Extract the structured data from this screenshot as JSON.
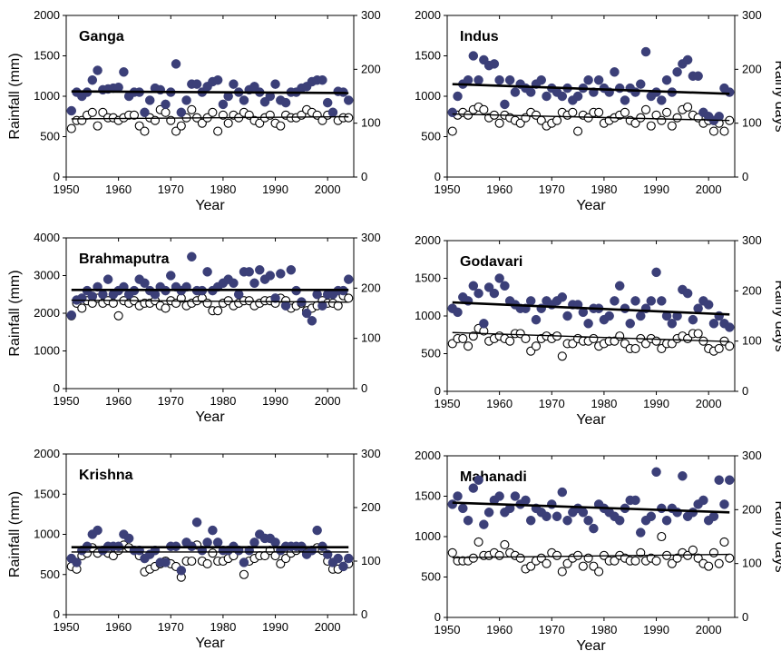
{
  "figure": {
    "x_axis_label": "Year",
    "y_axis_left_label": "Rainfall (mm)",
    "y_axis_right_label": "Rainy days"
  },
  "colors": {
    "rainfall_marker": "#3b3f78",
    "rainy_days_marker": "#ffffff",
    "trend_line": "#000000"
  },
  "chart_data": [
    {
      "type": "scatter",
      "title": "Ganga",
      "xlabel": "Year",
      "ylabel": "Rainfall (mm)",
      "y2label": "",
      "xlim": [
        1950,
        2005
      ],
      "ylim": [
        0,
        2000
      ],
      "y2lim": [
        0,
        300
      ],
      "xticks": [
        1950,
        1960,
        1970,
        1980,
        1990,
        2000
      ],
      "yticks": [
        0,
        500,
        1000,
        1500,
        2000
      ],
      "y2ticks": [
        0,
        100,
        200,
        300
      ],
      "x": [
        1951,
        1952,
        1953,
        1954,
        1955,
        1956,
        1957,
        1958,
        1959,
        1960,
        1961,
        1962,
        1963,
        1964,
        1965,
        1966,
        1967,
        1968,
        1969,
        1970,
        1971,
        1972,
        1973,
        1974,
        1975,
        1976,
        1977,
        1978,
        1979,
        1980,
        1981,
        1982,
        1983,
        1984,
        1985,
        1986,
        1987,
        1988,
        1989,
        1990,
        1991,
        1992,
        1993,
        1994,
        1995,
        1996,
        1997,
        1998,
        1999,
        2000,
        2001,
        2002,
        2003,
        2004
      ],
      "rainfall": [
        820,
        1050,
        1000,
        1050,
        1200,
        1320,
        1080,
        1090,
        1100,
        1110,
        1300,
        1000,
        1050,
        1050,
        800,
        950,
        1100,
        1080,
        900,
        1050,
        1400,
        800,
        950,
        1150,
        1150,
        1050,
        1120,
        1180,
        1200,
        900,
        1000,
        1150,
        1050,
        950,
        1080,
        1120,
        1050,
        930,
        1000,
        1150,
        950,
        920,
        1050,
        1050,
        1100,
        1120,
        1180,
        1200,
        1200,
        920,
        800,
        1060,
        1050,
        950
      ],
      "rainy_days": [
        90,
        105,
        105,
        115,
        120,
        95,
        120,
        110,
        110,
        105,
        110,
        115,
        115,
        95,
        85,
        110,
        105,
        125,
        120,
        105,
        85,
        95,
        110,
        125,
        110,
        100,
        110,
        120,
        85,
        115,
        100,
        115,
        110,
        120,
        115,
        105,
        100,
        110,
        115,
        100,
        95,
        115,
        110,
        110,
        115,
        125,
        120,
        115,
        105,
        115,
        120,
        105,
        110,
        110
      ],
      "trend_rainfall": [
        [
          1951,
          1060
        ],
        [
          2004,
          1040
        ]
      ],
      "trend_rainy_days": [
        [
          1951,
          108
        ],
        [
          2004,
          112
        ]
      ]
    },
    {
      "type": "scatter",
      "title": "Indus",
      "xlabel": "Year",
      "ylabel": "",
      "y2label": "Rainy days",
      "xlim": [
        1950,
        2005
      ],
      "ylim": [
        0,
        2000
      ],
      "y2lim": [
        0,
        300
      ],
      "xticks": [
        1950,
        1960,
        1970,
        1980,
        1990,
        2000
      ],
      "yticks": [
        0,
        500,
        1000,
        1500,
        2000
      ],
      "y2ticks": [
        0,
        100,
        200,
        300
      ],
      "x": [
        1951,
        1952,
        1953,
        1954,
        1955,
        1956,
        1957,
        1958,
        1959,
        1960,
        1961,
        1962,
        1963,
        1964,
        1965,
        1966,
        1967,
        1968,
        1969,
        1970,
        1971,
        1972,
        1973,
        1974,
        1975,
        1976,
        1977,
        1978,
        1979,
        1980,
        1981,
        1982,
        1983,
        1984,
        1985,
        1986,
        1987,
        1988,
        1989,
        1990,
        1991,
        1992,
        1993,
        1994,
        1995,
        1996,
        1997,
        1998,
        1999,
        2000,
        2001,
        2002,
        2003,
        2004
      ],
      "rainfall": [
        800,
        1000,
        1150,
        1200,
        1500,
        1200,
        1450,
        1380,
        1400,
        1200,
        900,
        1200,
        1050,
        1150,
        1100,
        1050,
        1150,
        1200,
        1000,
        1100,
        1050,
        1000,
        1100,
        950,
        1000,
        1100,
        1200,
        1050,
        1200,
        1100,
        1050,
        1300,
        1100,
        950,
        1100,
        1050,
        1150,
        1550,
        1000,
        1050,
        950,
        1200,
        1050,
        1300,
        1400,
        1450,
        1250,
        1250,
        800,
        750,
        700,
        750,
        1100,
        1050
      ],
      "rainy_days": [
        85,
        115,
        120,
        115,
        125,
        130,
        125,
        110,
        115,
        100,
        115,
        110,
        105,
        100,
        110,
        120,
        115,
        105,
        95,
        100,
        105,
        120,
        115,
        120,
        85,
        115,
        110,
        120,
        120,
        100,
        105,
        110,
        115,
        120,
        105,
        100,
        110,
        125,
        95,
        115,
        105,
        120,
        95,
        110,
        125,
        130,
        115,
        110,
        100,
        105,
        85,
        100,
        85,
        105
      ],
      "trend_rainfall": [
        [
          1951,
          1150
        ],
        [
          2004,
          1030
        ]
      ],
      "trend_rainy_days": [
        [
          1951,
          117
        ],
        [
          2004,
          105
        ]
      ]
    },
    {
      "type": "scatter",
      "title": "Brahmaputra",
      "xlabel": "Year",
      "ylabel": "Rainfall (mm)",
      "y2label": "",
      "xlim": [
        1950,
        2005
      ],
      "ylim": [
        0,
        4000
      ],
      "y2lim": [
        0,
        300
      ],
      "xticks": [
        1950,
        1960,
        1970,
        1980,
        1990,
        2000
      ],
      "yticks": [
        0,
        1000,
        2000,
        3000,
        4000
      ],
      "y2ticks": [
        0,
        100,
        200,
        300
      ],
      "x": [
        1951,
        1952,
        1953,
        1954,
        1955,
        1956,
        1957,
        1958,
        1959,
        1960,
        1961,
        1962,
        1963,
        1964,
        1965,
        1966,
        1967,
        1968,
        1969,
        1970,
        1971,
        1972,
        1973,
        1974,
        1975,
        1976,
        1977,
        1978,
        1979,
        1980,
        1981,
        1982,
        1983,
        1984,
        1985,
        1986,
        1987,
        1988,
        1989,
        1990,
        1991,
        1992,
        1993,
        1994,
        1995,
        1996,
        1997,
        1998,
        1999,
        2000,
        2001,
        2002,
        2003,
        2004
      ],
      "rainfall": [
        1950,
        2350,
        2400,
        2600,
        2450,
        2700,
        2500,
        2900,
        2500,
        2600,
        2700,
        2500,
        2600,
        2900,
        2800,
        2600,
        2500,
        2700,
        2600,
        3000,
        2700,
        2600,
        2700,
        3500,
        2600,
        2600,
        3100,
        2600,
        2700,
        2800,
        2900,
        2800,
        2500,
        3100,
        3100,
        2800,
        3150,
        2900,
        3000,
        2400,
        3050,
        2200,
        3150,
        2600,
        2300,
        2000,
        1800,
        2500,
        2200,
        2500,
        2500,
        2600,
        2600,
        2900
      ],
      "rainy_days": [
        145,
        170,
        160,
        175,
        170,
        180,
        170,
        175,
        170,
        145,
        175,
        170,
        175,
        165,
        170,
        170,
        175,
        165,
        160,
        175,
        170,
        180,
        165,
        170,
        175,
        180,
        170,
        155,
        155,
        170,
        175,
        165,
        170,
        175,
        175,
        165,
        170,
        175,
        175,
        170,
        180,
        175,
        160,
        165,
        170,
        155,
        160,
        165,
        175,
        170,
        170,
        165,
        185,
        180
      ],
      "trend_rainfall": [
        [
          1951,
          2620
        ],
        [
          2004,
          2620
        ]
      ],
      "trend_rainy_days": [
        [
          1951,
          176
        ],
        [
          2004,
          172
        ]
      ]
    },
    {
      "type": "scatter",
      "title": "Godavari",
      "xlabel": "Year",
      "ylabel": "",
      "y2label": "Rainy days",
      "xlim": [
        1950,
        2005
      ],
      "ylim": [
        0,
        2000
      ],
      "y2lim": [
        0,
        300
      ],
      "xticks": [
        1950,
        1960,
        1970,
        1980,
        1990,
        2000
      ],
      "yticks": [
        0,
        500,
        1000,
        1500,
        2000
      ],
      "y2ticks": [
        0,
        100,
        200,
        300
      ],
      "x": [
        1951,
        1952,
        1953,
        1954,
        1955,
        1956,
        1957,
        1958,
        1959,
        1960,
        1961,
        1962,
        1963,
        1964,
        1965,
        1966,
        1967,
        1968,
        1969,
        1970,
        1971,
        1972,
        1973,
        1974,
        1975,
        1976,
        1977,
        1978,
        1979,
        1980,
        1981,
        1982,
        1983,
        1984,
        1985,
        1986,
        1987,
        1988,
        1989,
        1990,
        1991,
        1992,
        1993,
        1994,
        1995,
        1996,
        1997,
        1998,
        1999,
        2000,
        2001,
        2002,
        2003,
        2004
      ],
      "rainfall": [
        1100,
        1050,
        1250,
        1200,
        1400,
        1300,
        900,
        1380,
        1300,
        1500,
        1400,
        1200,
        1150,
        1100,
        1100,
        1200,
        950,
        1100,
        1200,
        1150,
        1200,
        1250,
        1000,
        1150,
        1150,
        1050,
        900,
        1100,
        1100,
        950,
        1000,
        1200,
        1400,
        1100,
        900,
        1200,
        1000,
        1100,
        1200,
        1580,
        1200,
        1000,
        900,
        1000,
        1350,
        1300,
        950,
        1100,
        1200,
        1150,
        900,
        1000,
        900,
        850
      ],
      "rainy_days": [
        95,
        105,
        105,
        90,
        110,
        125,
        120,
        100,
        105,
        110,
        105,
        100,
        115,
        115,
        105,
        80,
        90,
        105,
        110,
        105,
        110,
        70,
        95,
        95,
        105,
        100,
        100,
        105,
        90,
        95,
        100,
        100,
        110,
        95,
        85,
        85,
        105,
        95,
        105,
        100,
        85,
        95,
        95,
        105,
        110,
        105,
        115,
        115,
        100,
        85,
        80,
        85,
        100,
        90
      ],
      "trend_rainfall": [
        [
          1951,
          1180
        ],
        [
          2004,
          1020
        ]
      ],
      "trend_rainy_days": [
        [
          1951,
          117
        ],
        [
          2004,
          99
        ]
      ]
    },
    {
      "type": "scatter",
      "title": "Krishna",
      "xlabel": "Year",
      "ylabel": "Rainfall (mm)",
      "y2label": "",
      "xlim": [
        1950,
        2005
      ],
      "ylim": [
        0,
        2000
      ],
      "y2lim": [
        0,
        300
      ],
      "xticks": [
        1950,
        1960,
        1970,
        1980,
        1990,
        2000
      ],
      "yticks": [
        0,
        500,
        1000,
        1500,
        2000
      ],
      "y2ticks": [
        0,
        100,
        200,
        300
      ],
      "x": [
        1951,
        1952,
        1953,
        1954,
        1955,
        1956,
        1957,
        1958,
        1959,
        1960,
        1961,
        1962,
        1963,
        1964,
        1965,
        1966,
        1967,
        1968,
        1969,
        1970,
        1971,
        1972,
        1973,
        1974,
        1975,
        1976,
        1977,
        1978,
        1979,
        1980,
        1981,
        1982,
        1983,
        1984,
        1985,
        1986,
        1987,
        1988,
        1989,
        1990,
        1991,
        1992,
        1993,
        1994,
        1995,
        1996,
        1997,
        1998,
        1999,
        2000,
        2001,
        2002,
        2003,
        2004
      ],
      "rainfall": [
        700,
        650,
        800,
        850,
        1000,
        1050,
        800,
        850,
        850,
        850,
        1000,
        950,
        800,
        800,
        700,
        750,
        800,
        650,
        650,
        850,
        850,
        550,
        900,
        850,
        1150,
        800,
        900,
        1050,
        900,
        800,
        800,
        850,
        800,
        650,
        800,
        900,
        1000,
        950,
        950,
        900,
        800,
        850,
        850,
        850,
        850,
        750,
        800,
        1050,
        850,
        750,
        650,
        700,
        600,
        700
      ],
      "rainy_days": [
        90,
        85,
        110,
        115,
        125,
        115,
        120,
        115,
        110,
        120,
        130,
        125,
        120,
        110,
        80,
        85,
        90,
        95,
        100,
        95,
        90,
        70,
        100,
        100,
        130,
        100,
        95,
        115,
        100,
        100,
        105,
        110,
        120,
        75,
        100,
        105,
        110,
        110,
        120,
        110,
        95,
        105,
        115,
        120,
        125,
        115,
        120,
        125,
        120,
        100,
        85,
        85,
        90,
        95
      ],
      "trend_rainfall": [
        [
          1951,
          840
        ],
        [
          2004,
          840
        ]
      ],
      "trend_rainy_days": [
        [
          1951,
          117
        ],
        [
          2004,
          117
        ]
      ]
    },
    {
      "type": "scatter",
      "title": "Mahanadi",
      "xlabel": "Year",
      "ylabel": "",
      "y2label": "Rainy days",
      "xlim": [
        1950,
        2005
      ],
      "ylim": [
        0,
        2000
      ],
      "y2lim": [
        0,
        300
      ],
      "xticks": [
        1950,
        1960,
        1970,
        1980,
        1990,
        2000
      ],
      "yticks": [
        0,
        500,
        1000,
        1500,
        2000
      ],
      "y2ticks": [
        0,
        100,
        200,
        300
      ],
      "x": [
        1951,
        1952,
        1953,
        1954,
        1955,
        1956,
        1957,
        1958,
        1959,
        1960,
        1961,
        1962,
        1963,
        1964,
        1965,
        1966,
        1967,
        1968,
        1969,
        1970,
        1971,
        1972,
        1973,
        1974,
        1975,
        1976,
        1977,
        1978,
        1979,
        1980,
        1981,
        1982,
        1983,
        1984,
        1985,
        1986,
        1987,
        1988,
        1989,
        1990,
        1991,
        1992,
        1993,
        1994,
        1995,
        1996,
        1997,
        1998,
        1999,
        2000,
        2001,
        2002,
        2003,
        2004
      ],
      "rainfall": [
        1400,
        1500,
        1350,
        1200,
        1600,
        1700,
        1150,
        1300,
        1450,
        1500,
        1300,
        1350,
        1500,
        1400,
        1450,
        1200,
        1350,
        1300,
        1250,
        1400,
        1250,
        1550,
        1200,
        1300,
        1350,
        1300,
        1200,
        1100,
        1400,
        1350,
        1300,
        1250,
        1200,
        1350,
        1450,
        1450,
        1050,
        1200,
        1250,
        1800,
        1350,
        1200,
        1350,
        1300,
        1750,
        1250,
        1300,
        1400,
        1450,
        1200,
        1250,
        1700,
        1400,
        1700
      ],
      "rainy_days": [
        120,
        105,
        105,
        105,
        110,
        140,
        115,
        115,
        120,
        115,
        135,
        120,
        115,
        110,
        90,
        95,
        105,
        110,
        100,
        120,
        115,
        85,
        100,
        110,
        115,
        95,
        110,
        95,
        85,
        115,
        105,
        105,
        115,
        110,
        105,
        105,
        120,
        105,
        110,
        105,
        150,
        115,
        100,
        110,
        120,
        115,
        125,
        110,
        100,
        95,
        120,
        100,
        140,
        110
      ],
      "trend_rainfall": [
        [
          1951,
          1420
        ],
        [
          2004,
          1300
        ]
      ],
      "trend_rainy_days": [
        [
          1951,
          111
        ],
        [
          2004,
          117
        ]
      ]
    }
  ]
}
